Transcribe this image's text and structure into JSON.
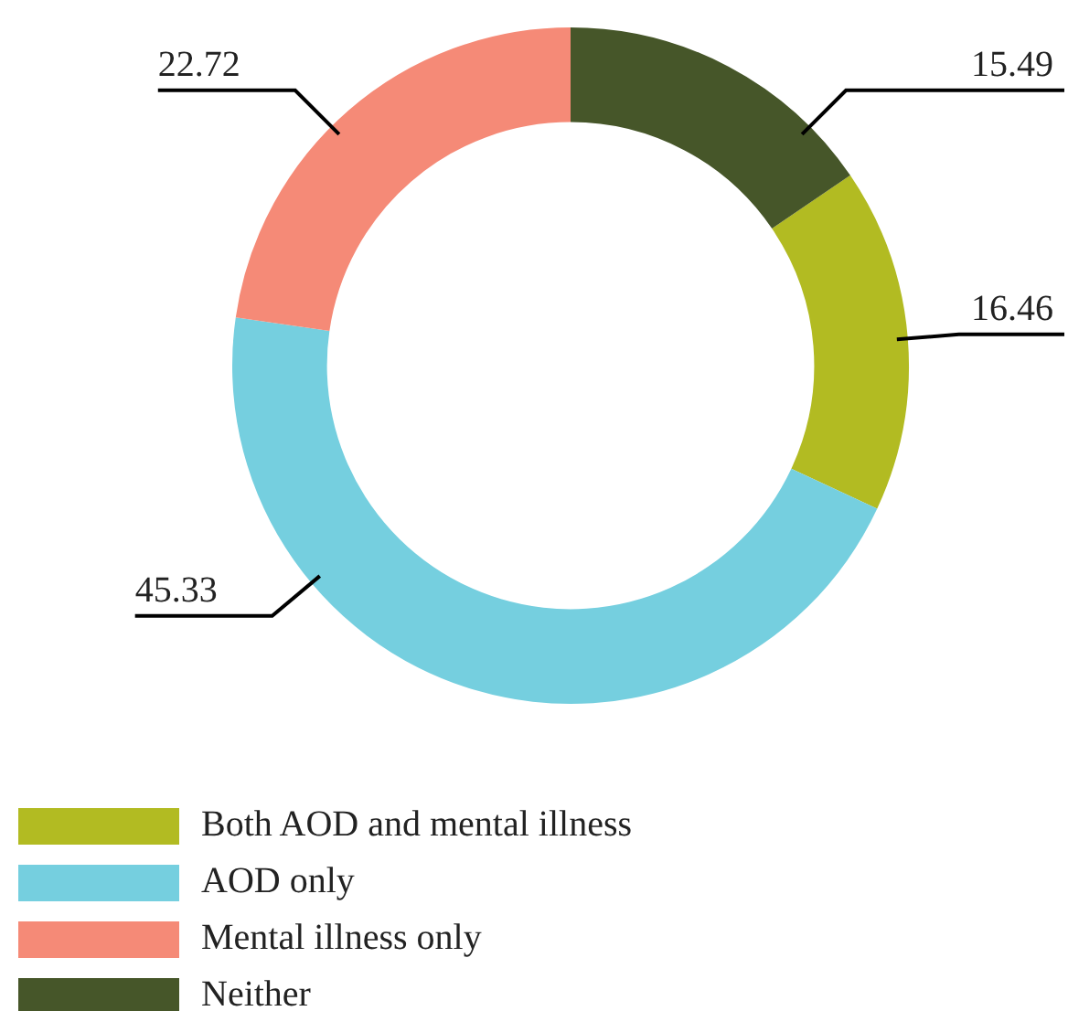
{
  "chart_data": {
    "type": "donut",
    "categories": [
      "Both AOD and mental illness",
      "AOD only",
      "Mental illness only",
      "Neither"
    ],
    "values": [
      16.46,
      45.33,
      22.72,
      15.49
    ],
    "colors": [
      "#b2bb22",
      "#75cfdf",
      "#f58a77",
      "#465629"
    ],
    "data_labels": true,
    "legend": "bottom left"
  }
}
